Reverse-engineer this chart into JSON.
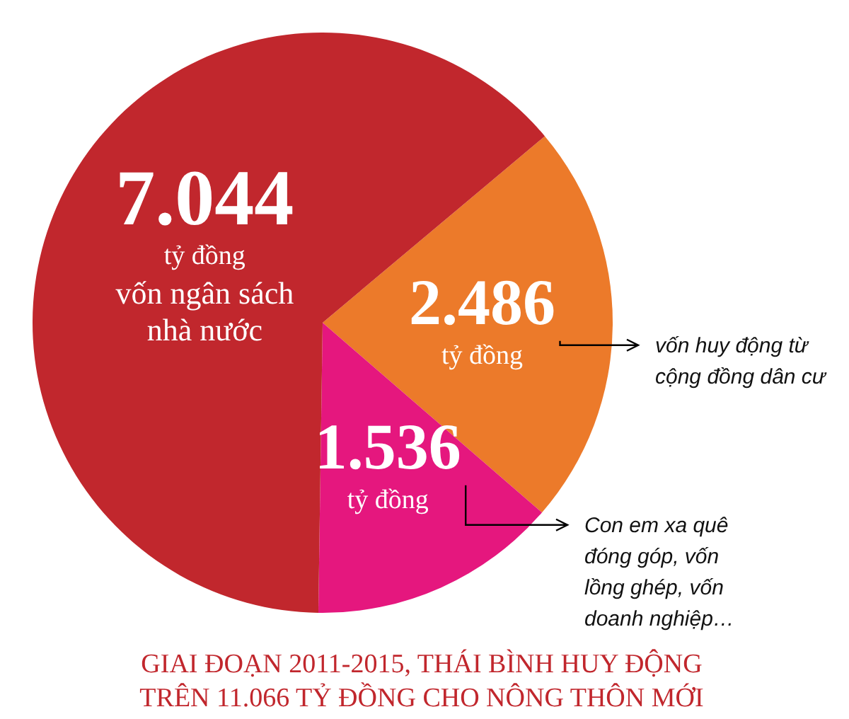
{
  "chart_data": {
    "type": "pie",
    "title": "GIAI ĐOẠN 2011-2015, THÁI BÌNH HUY ĐỘNG TRÊN 11.066 TỶ ĐỒNG CHO NÔNG THÔN MỚI",
    "categories": [
      "vốn huy động từ cộng đồng dân cư",
      "Con em xa quê đóng góp, vốn lồng ghép, vốn doanh nghiệp…",
      "vốn ngân sách nhà nước"
    ],
    "values": [
      2486,
      1536,
      7044
    ],
    "value_labels": [
      "2.486",
      "1.536",
      "7.044"
    ],
    "annotations": [
      "tỷ đồng",
      "tỷ đồng",
      "tỷ đồng"
    ],
    "colors": [
      "#ec7a2a",
      "#e5177e",
      "#c1272d"
    ],
    "legend": false
  }
}
